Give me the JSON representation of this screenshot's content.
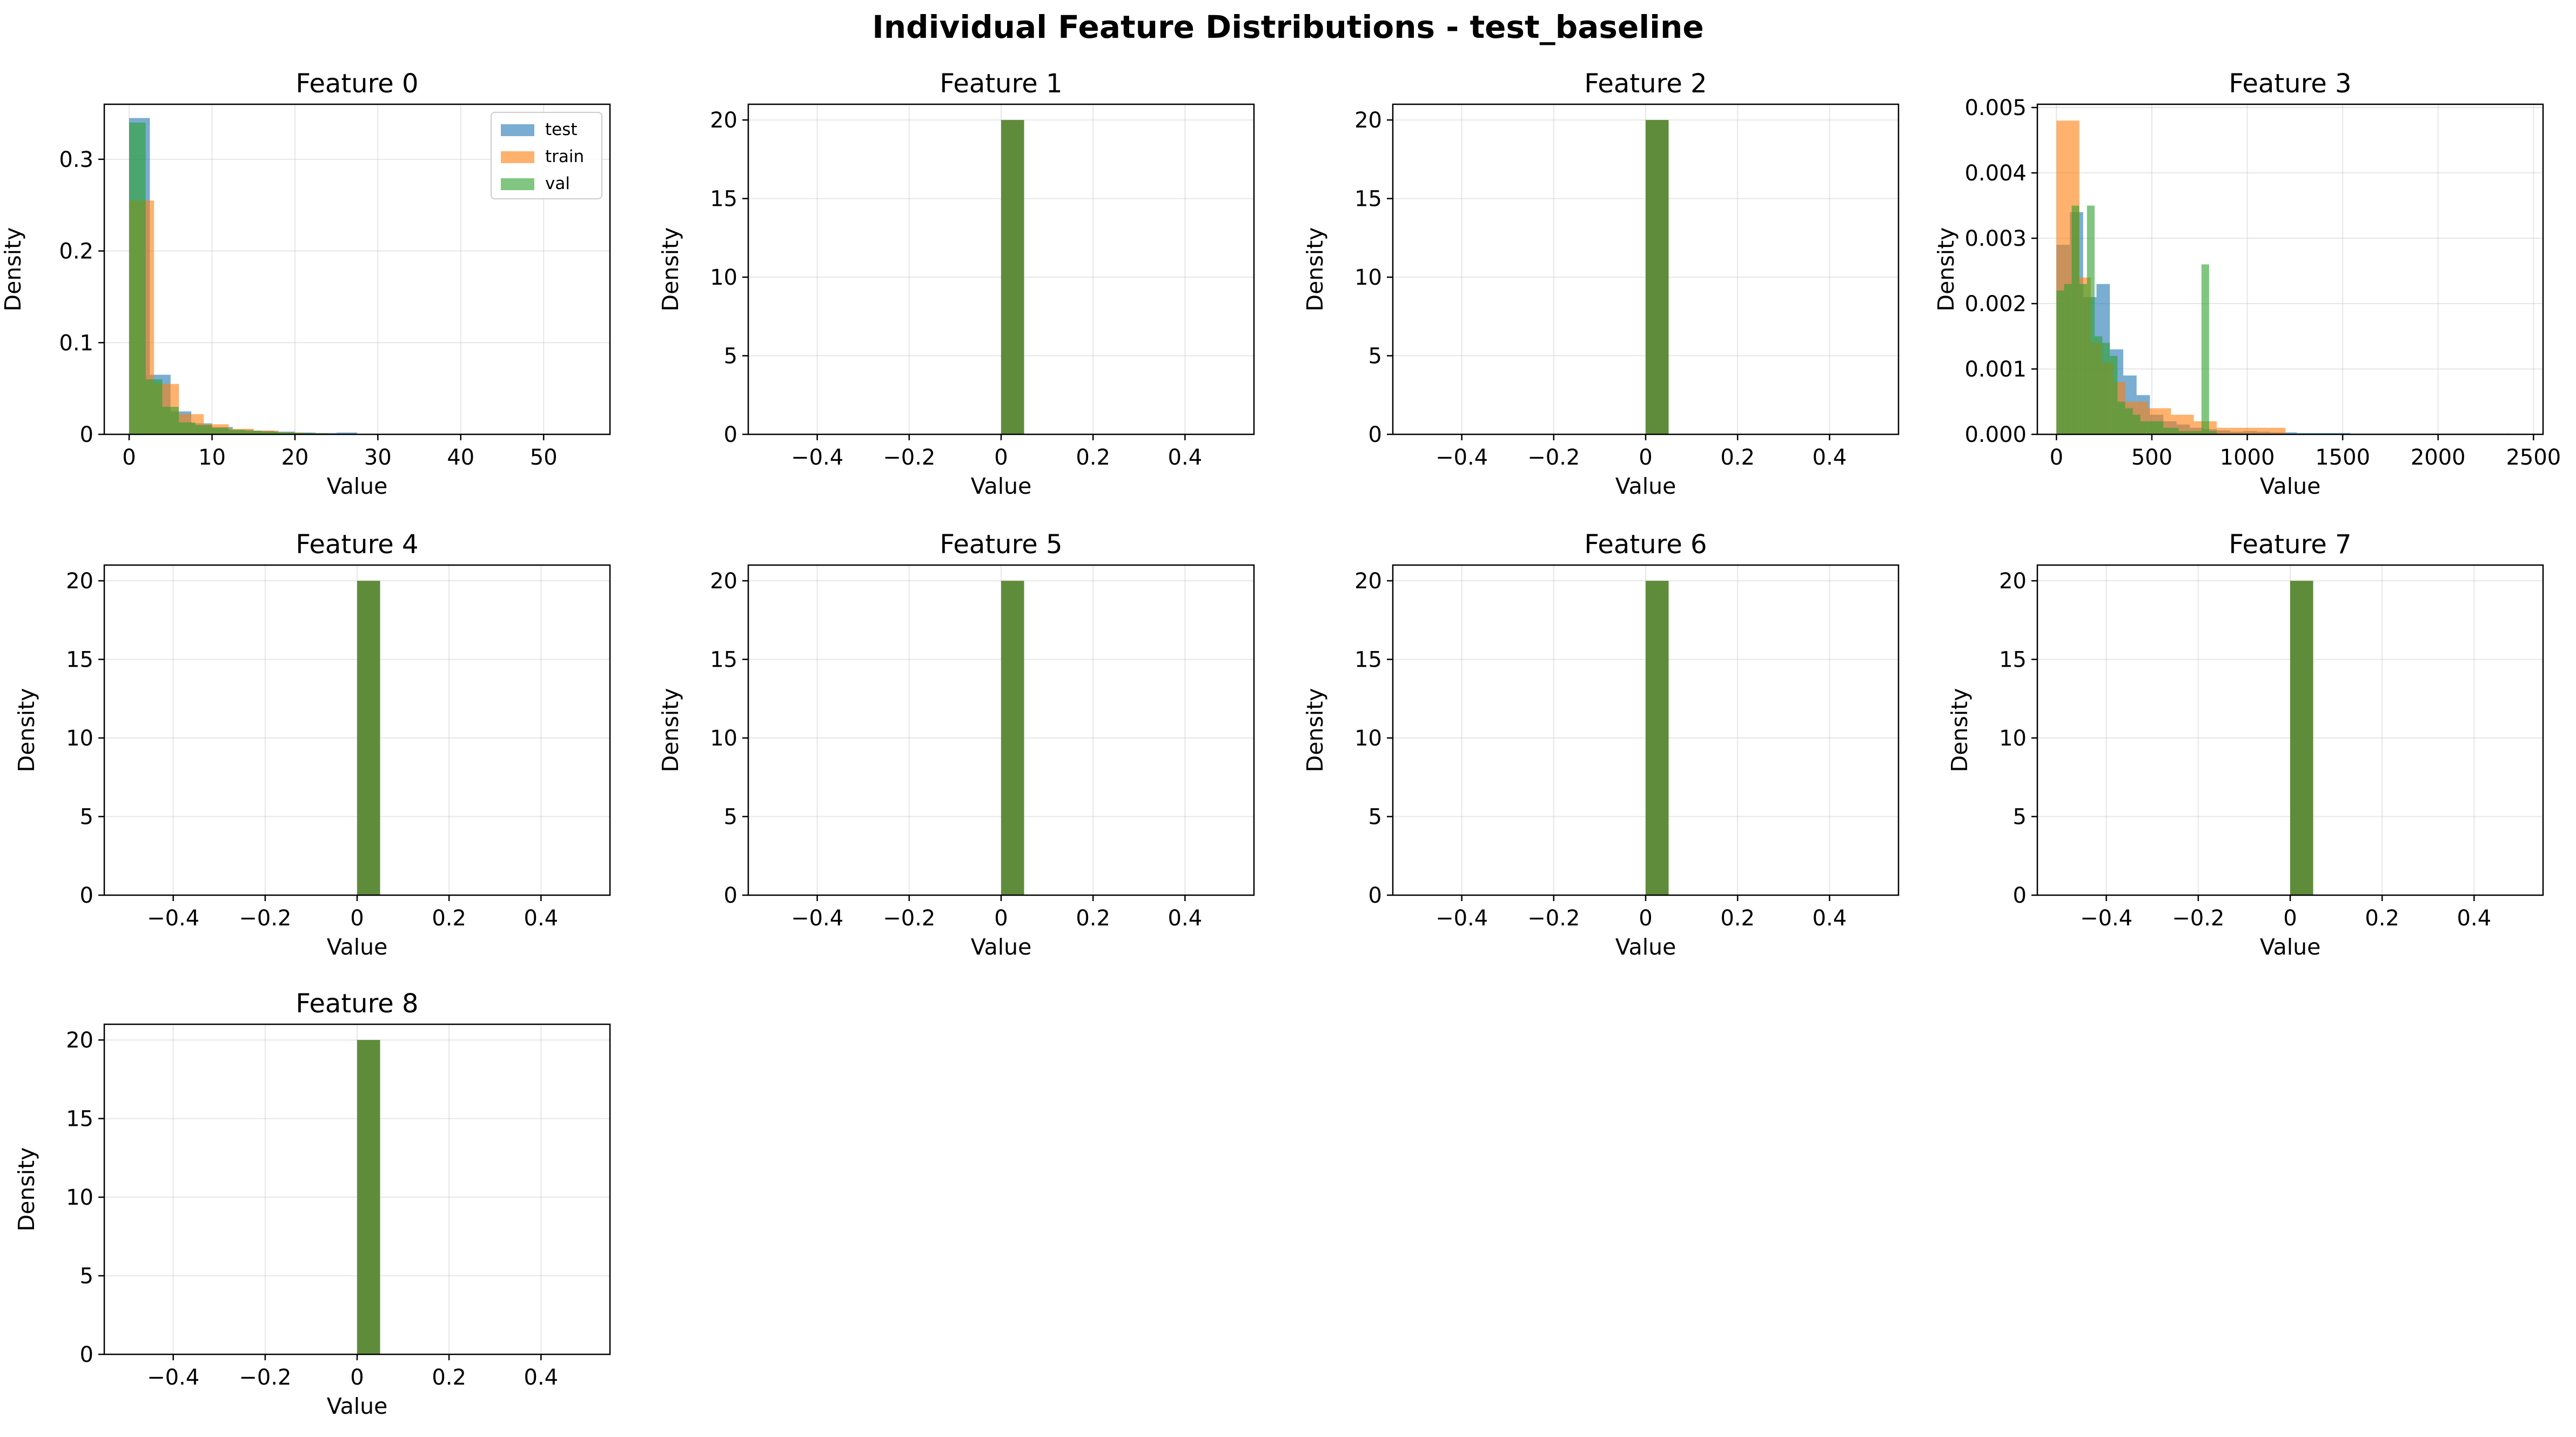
{
  "figure": {
    "title": "Individual Feature Distributions - test_baseline"
  },
  "colors": {
    "test": "#1f77b4",
    "train": "#ff7f0e",
    "val": "#2ca02c",
    "overlap": "#5f8c3a"
  },
  "legend": {
    "placement": "top-right",
    "entries": [
      {
        "key": "test",
        "label": "test"
      },
      {
        "key": "train",
        "label": "train"
      },
      {
        "key": "val",
        "label": "val"
      }
    ]
  },
  "chart_data": [
    {
      "type": "histogram",
      "title": "Feature 0",
      "xlabel": "Value",
      "ylabel": "Density",
      "xlim": [
        -3,
        58
      ],
      "ylim": [
        0,
        0.36
      ],
      "xticks": [
        0,
        10,
        20,
        30,
        40,
        50
      ],
      "yticks": [
        0.0,
        0.1,
        0.2,
        0.3
      ],
      "grid": true,
      "legend": true,
      "series": [
        {
          "name": "test",
          "bins": [
            [
              0,
              2.5,
              0.345
            ],
            [
              2.5,
              5,
              0.065
            ],
            [
              5,
              7.5,
              0.025
            ],
            [
              7.5,
              10,
              0.012
            ],
            [
              10,
              12.5,
              0.008
            ],
            [
              12.5,
              15,
              0.005
            ],
            [
              15,
              17.5,
              0.004
            ],
            [
              17.5,
              20,
              0.003
            ],
            [
              20,
              22.5,
              0.002
            ],
            [
              22.5,
              25,
              0.0015
            ],
            [
              25,
              27.5,
              0.002
            ]
          ]
        },
        {
          "name": "train",
          "bins": [
            [
              0,
              3,
              0.255
            ],
            [
              3,
              6,
              0.055
            ],
            [
              6,
              9,
              0.022
            ],
            [
              9,
              12,
              0.011
            ],
            [
              12,
              15,
              0.006
            ],
            [
              15,
              18,
              0.004
            ],
            [
              18,
              21,
              0.002
            ],
            [
              21,
              24,
              0.0012
            ],
            [
              24,
              27,
              0.0008
            ]
          ]
        },
        {
          "name": "val",
          "bins": [
            [
              0,
              2,
              0.34
            ],
            [
              2,
              4,
              0.06
            ],
            [
              4,
              6,
              0.03
            ],
            [
              6,
              8,
              0.013
            ],
            [
              8,
              10,
              0.01
            ],
            [
              10,
              12,
              0.007
            ],
            [
              12,
              14,
              0.005
            ],
            [
              14,
              16,
              0.004
            ],
            [
              16,
              18,
              0.003
            ],
            [
              18,
              20,
              0.002
            ],
            [
              20,
              22,
              0.0015
            ],
            [
              22,
              24,
              0.001
            ]
          ]
        }
      ]
    },
    {
      "type": "histogram",
      "title": "Feature 1",
      "xlabel": "Value",
      "ylabel": "Density",
      "xlim": [
        -0.55,
        0.55
      ],
      "ylim": [
        0,
        21
      ],
      "xticks": [
        -0.4,
        -0.2,
        0.0,
        0.2,
        0.4
      ],
      "yticks": [
        0,
        5,
        10,
        15,
        20
      ],
      "grid": true,
      "legend": false,
      "overlap_bar": [
        0,
        0.05,
        20
      ]
    },
    {
      "type": "histogram",
      "title": "Feature 2",
      "xlabel": "Value",
      "ylabel": "Density",
      "xlim": [
        -0.55,
        0.55
      ],
      "ylim": [
        0,
        21
      ],
      "xticks": [
        -0.4,
        -0.2,
        0.0,
        0.2,
        0.4
      ],
      "yticks": [
        0,
        5,
        10,
        15,
        20
      ],
      "grid": true,
      "legend": false,
      "overlap_bar": [
        0,
        0.05,
        20
      ]
    },
    {
      "type": "histogram",
      "title": "Feature 3",
      "xlabel": "Value",
      "ylabel": "Density",
      "xlim": [
        -100,
        2550
      ],
      "ylim": [
        0,
        0.00505
      ],
      "xticks": [
        0,
        500,
        1000,
        1500,
        2000,
        2500
      ],
      "yticks": [
        0.0,
        0.001,
        0.002,
        0.003,
        0.004,
        0.005
      ],
      "ytick_labels": [
        "0.000",
        "0.001",
        "0.002",
        "0.003",
        "0.004",
        "0.005"
      ],
      "grid": true,
      "legend": false,
      "series": [
        {
          "name": "test",
          "bins": [
            [
              0,
              70,
              0.0029
            ],
            [
              70,
              140,
              0.0034
            ],
            [
              140,
              210,
              0.0021
            ],
            [
              210,
              280,
              0.0023
            ],
            [
              280,
              350,
              0.0013
            ],
            [
              350,
              420,
              0.0009
            ],
            [
              420,
              490,
              0.0006
            ],
            [
              490,
              560,
              0.0003
            ],
            [
              560,
              630,
              0.0002
            ],
            [
              630,
              700,
              0.00015
            ],
            [
              700,
              770,
              0.0001
            ],
            [
              770,
              840,
              8e-05
            ],
            [
              840,
              910,
              6e-05
            ],
            [
              910,
              980,
              4e-05
            ],
            [
              980,
              1050,
              5e-05
            ],
            [
              1050,
              1120,
              4e-05
            ],
            [
              1120,
              1190,
              3e-05
            ],
            [
              1190,
              1260,
              3e-05
            ],
            [
              1260,
              1330,
              2e-05
            ],
            [
              1330,
              1400,
              2e-05
            ],
            [
              1400,
              1470,
              2e-05
            ],
            [
              1470,
              1540,
              2e-05
            ],
            [
              1540,
              1610,
              1e-05
            ],
            [
              1610,
              1680,
              1e-05
            ],
            [
              1680,
              1750,
              1e-05
            ],
            [
              1750,
              1820,
              1e-05
            ],
            [
              1820,
              1890,
              1e-05
            ],
            [
              1890,
              1960,
              1e-05
            ],
            [
              1960,
              2030,
              1e-05
            ],
            [
              2030,
              2100,
              1e-05
            ],
            [
              2100,
              2170,
              1e-05
            ],
            [
              2170,
              2240,
              1e-05
            ],
            [
              2240,
              2310,
              1e-05
            ],
            [
              2310,
              2380,
              1e-05
            ]
          ]
        },
        {
          "name": "train",
          "bins": [
            [
              0,
              60,
              0.0048
            ],
            [
              60,
              120,
              0.0048
            ],
            [
              120,
              180,
              0.0024
            ],
            [
              180,
              240,
              0.0014
            ],
            [
              240,
              300,
              0.0011
            ],
            [
              300,
              360,
              0.0008
            ],
            [
              360,
              420,
              0.0005
            ],
            [
              420,
              480,
              0.0005
            ],
            [
              480,
              540,
              0.0004
            ],
            [
              540,
              600,
              0.0004
            ],
            [
              600,
              660,
              0.0003
            ],
            [
              660,
              720,
              0.0003
            ],
            [
              720,
              780,
              0.0002
            ],
            [
              780,
              840,
              0.0002
            ],
            [
              840,
              900,
              0.0001
            ],
            [
              900,
              960,
              0.0001
            ],
            [
              960,
              1020,
              0.0001
            ],
            [
              1020,
              1080,
              0.0001
            ],
            [
              1080,
              1140,
              0.0001
            ],
            [
              1140,
              1200,
              0.0001
            ]
          ]
        },
        {
          "name": "val",
          "bins": [
            [
              0,
              40,
              0.0022
            ],
            [
              40,
              80,
              0.0023
            ],
            [
              80,
              120,
              0.0035
            ],
            [
              120,
              160,
              0.0023
            ],
            [
              160,
              200,
              0.0035
            ],
            [
              200,
              240,
              0.0015
            ],
            [
              240,
              280,
              0.0014
            ],
            [
              280,
              320,
              0.0012
            ],
            [
              320,
              360,
              0.0005
            ],
            [
              360,
              400,
              0.0004
            ],
            [
              400,
              440,
              0.0003
            ],
            [
              440,
              480,
              0.0002
            ],
            [
              480,
              520,
              0.0002
            ],
            [
              520,
              560,
              0.0002
            ],
            [
              560,
              600,
              0.0001
            ],
            [
              600,
              640,
              0.0001
            ],
            [
              640,
              680,
              5e-05
            ],
            [
              680,
              720,
              5e-05
            ],
            [
              720,
              760,
              5e-05
            ],
            [
              760,
              800,
              0.0026
            ],
            [
              800,
              840,
              5e-05
            ]
          ]
        }
      ]
    },
    {
      "type": "histogram",
      "title": "Feature 4",
      "xlabel": "Value",
      "ylabel": "Density",
      "xlim": [
        -0.55,
        0.55
      ],
      "ylim": [
        0,
        21
      ],
      "xticks": [
        -0.4,
        -0.2,
        0.0,
        0.2,
        0.4
      ],
      "yticks": [
        0,
        5,
        10,
        15,
        20
      ],
      "grid": true,
      "legend": false,
      "overlap_bar": [
        0,
        0.05,
        20
      ]
    },
    {
      "type": "histogram",
      "title": "Feature 5",
      "xlabel": "Value",
      "ylabel": "Density",
      "xlim": [
        -0.55,
        0.55
      ],
      "ylim": [
        0,
        21
      ],
      "xticks": [
        -0.4,
        -0.2,
        0.0,
        0.2,
        0.4
      ],
      "yticks": [
        0,
        5,
        10,
        15,
        20
      ],
      "grid": true,
      "legend": false,
      "overlap_bar": [
        0,
        0.05,
        20
      ]
    },
    {
      "type": "histogram",
      "title": "Feature 6",
      "xlabel": "Value",
      "ylabel": "Density",
      "xlim": [
        -0.55,
        0.55
      ],
      "ylim": [
        0,
        21
      ],
      "xticks": [
        -0.4,
        -0.2,
        0.0,
        0.2,
        0.4
      ],
      "yticks": [
        0,
        5,
        10,
        15,
        20
      ],
      "grid": true,
      "legend": false,
      "overlap_bar": [
        0,
        0.05,
        20
      ]
    },
    {
      "type": "histogram",
      "title": "Feature 7",
      "xlabel": "Value",
      "ylabel": "Density",
      "xlim": [
        -0.55,
        0.55
      ],
      "ylim": [
        0,
        21
      ],
      "xticks": [
        -0.4,
        -0.2,
        0.0,
        0.2,
        0.4
      ],
      "yticks": [
        0,
        5,
        10,
        15,
        20
      ],
      "grid": true,
      "legend": false,
      "overlap_bar": [
        0,
        0.05,
        20
      ]
    },
    {
      "type": "histogram",
      "title": "Feature 8",
      "xlabel": "Value",
      "ylabel": "Density",
      "xlim": [
        -0.55,
        0.55
      ],
      "ylim": [
        0,
        21
      ],
      "xticks": [
        -0.4,
        -0.2,
        0.0,
        0.2,
        0.4
      ],
      "yticks": [
        0,
        5,
        10,
        15,
        20
      ],
      "grid": true,
      "legend": false,
      "overlap_bar": [
        0,
        0.05,
        20
      ]
    }
  ]
}
